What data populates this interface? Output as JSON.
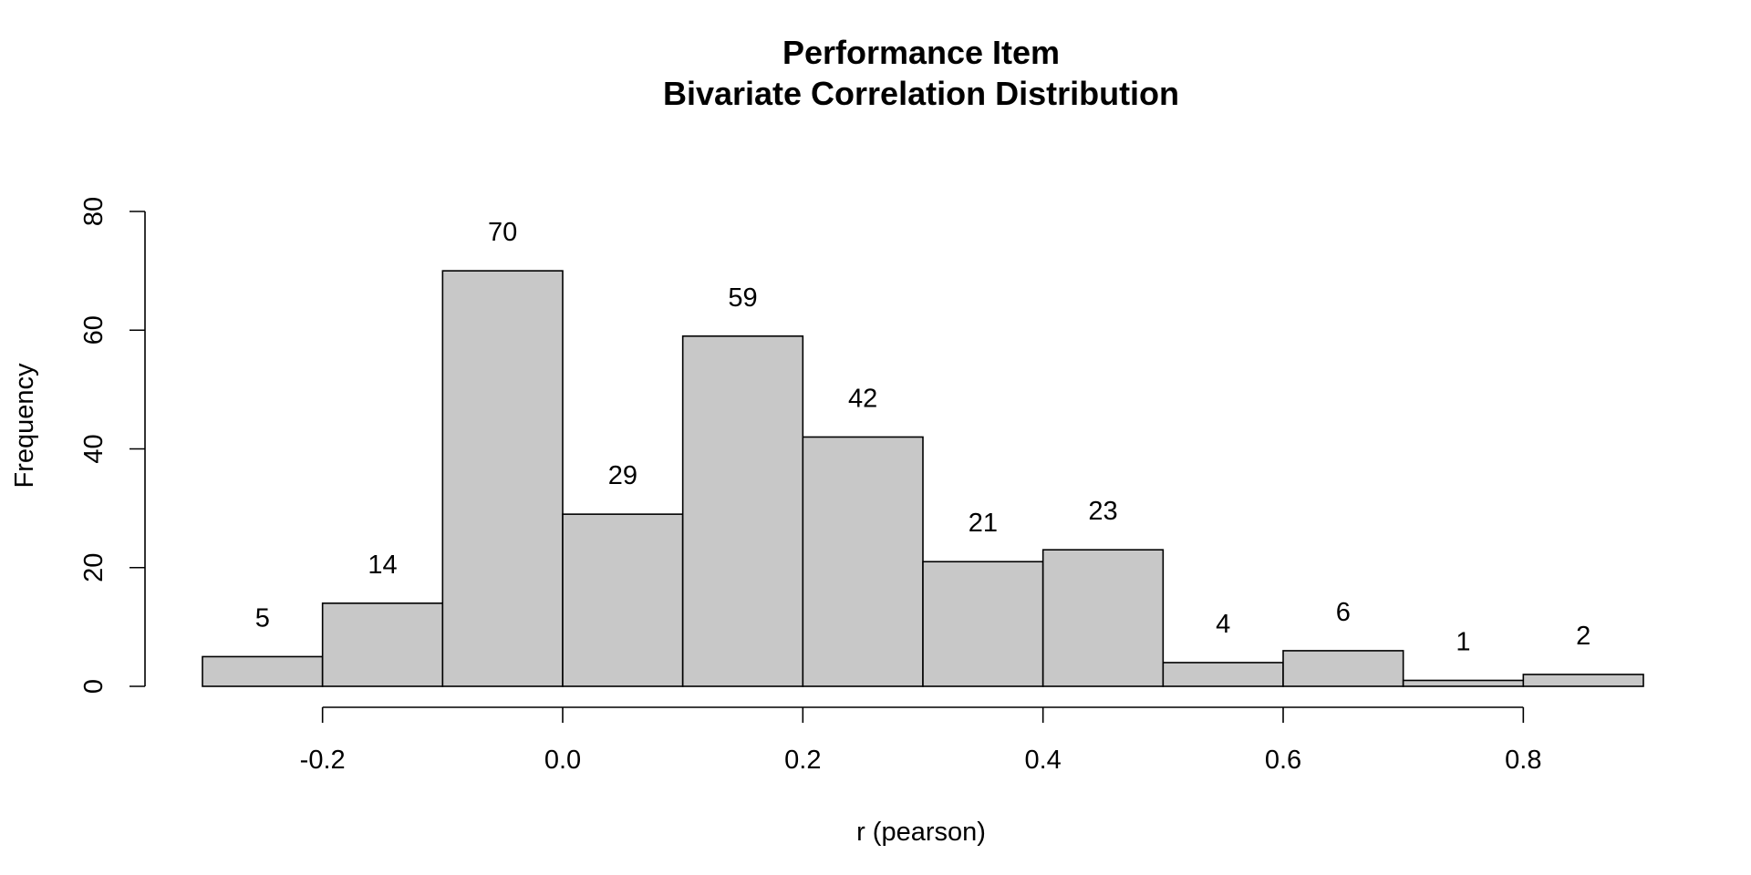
{
  "chart_data": {
    "type": "bar",
    "title": "Performance Item",
    "subtitle": "Bivariate Correlation Distribution",
    "xlabel": "r (pearson)",
    "ylabel": "Frequency",
    "bin_edges": [
      -0.3,
      -0.2,
      -0.1,
      0.0,
      0.1,
      0.2,
      0.3,
      0.4,
      0.5,
      0.6,
      0.7,
      0.8,
      0.9
    ],
    "values": [
      5,
      14,
      70,
      29,
      59,
      42,
      21,
      23,
      4,
      6,
      1,
      2
    ],
    "xlim": [
      -0.3,
      0.9
    ],
    "ylim": [
      0,
      80
    ],
    "x_ticks": [
      -0.2,
      0.0,
      0.2,
      0.4,
      0.6,
      0.8
    ],
    "x_tick_labels": [
      "-0.2",
      "0.0",
      "0.2",
      "0.4",
      "0.6",
      "0.8"
    ],
    "y_ticks": [
      0,
      20,
      40,
      60,
      80
    ],
    "y_tick_labels": [
      "0",
      "20",
      "40",
      "60",
      "80"
    ],
    "bar_color": "#c8c8c8",
    "edge_color": "#000000",
    "grid": false,
    "legend": false
  }
}
